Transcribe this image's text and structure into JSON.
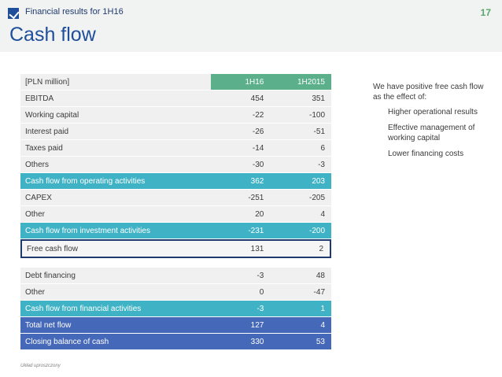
{
  "header": {
    "kicker": "Financial results for 1H16",
    "page_number": "17",
    "title": "Cash flow"
  },
  "table": {
    "unit_label": "[PLN million]",
    "columns": [
      "1H16",
      "1H2015"
    ],
    "rows": [
      {
        "label": "EBITDA",
        "values": [
          "454",
          "351"
        ]
      },
      {
        "label": "Working capital",
        "values": [
          "-22",
          "-100"
        ]
      },
      {
        "label": "Interest paid",
        "values": [
          "-26",
          "-51"
        ]
      },
      {
        "label": "Taxes paid",
        "values": [
          "-14",
          "6"
        ]
      },
      {
        "label": "Others",
        "values": [
          "-30",
          "-3"
        ]
      },
      {
        "label": "Cash flow from operating activities",
        "values": [
          "362",
          "203"
        ]
      },
      {
        "label": "CAPEX",
        "values": [
          "-251",
          "-205"
        ]
      },
      {
        "label": "Other",
        "values": [
          "20",
          "4"
        ]
      },
      {
        "label": "Cash flow from investment activities",
        "values": [
          "-231",
          "-200"
        ]
      },
      {
        "label": "Free cash flow",
        "values": [
          "131",
          "2"
        ]
      },
      {
        "label": "Debt financing",
        "values": [
          "-3",
          "48"
        ]
      },
      {
        "label": "Other",
        "values": [
          "0",
          "-47"
        ]
      },
      {
        "label": "Cash flow from financial activities",
        "values": [
          "-3",
          "1"
        ]
      },
      {
        "label": "Total net flow",
        "values": [
          "127",
          "4"
        ]
      },
      {
        "label": "Closing balance of cash",
        "values": [
          "330",
          "53"
        ]
      }
    ]
  },
  "side_note": {
    "intro": "We have positive free cash flow as the effect of:",
    "bullets": [
      "Higher operational results",
      "Effective management of working capital",
      "Lower financing costs"
    ]
  },
  "footnote": "Układ uproszczony",
  "colors": {
    "header_green": "#5bb08b",
    "teal": "#3fb3c5",
    "blue": "#4668b8",
    "title_blue": "#1f4e9a",
    "page_green": "#5aa66a"
  }
}
